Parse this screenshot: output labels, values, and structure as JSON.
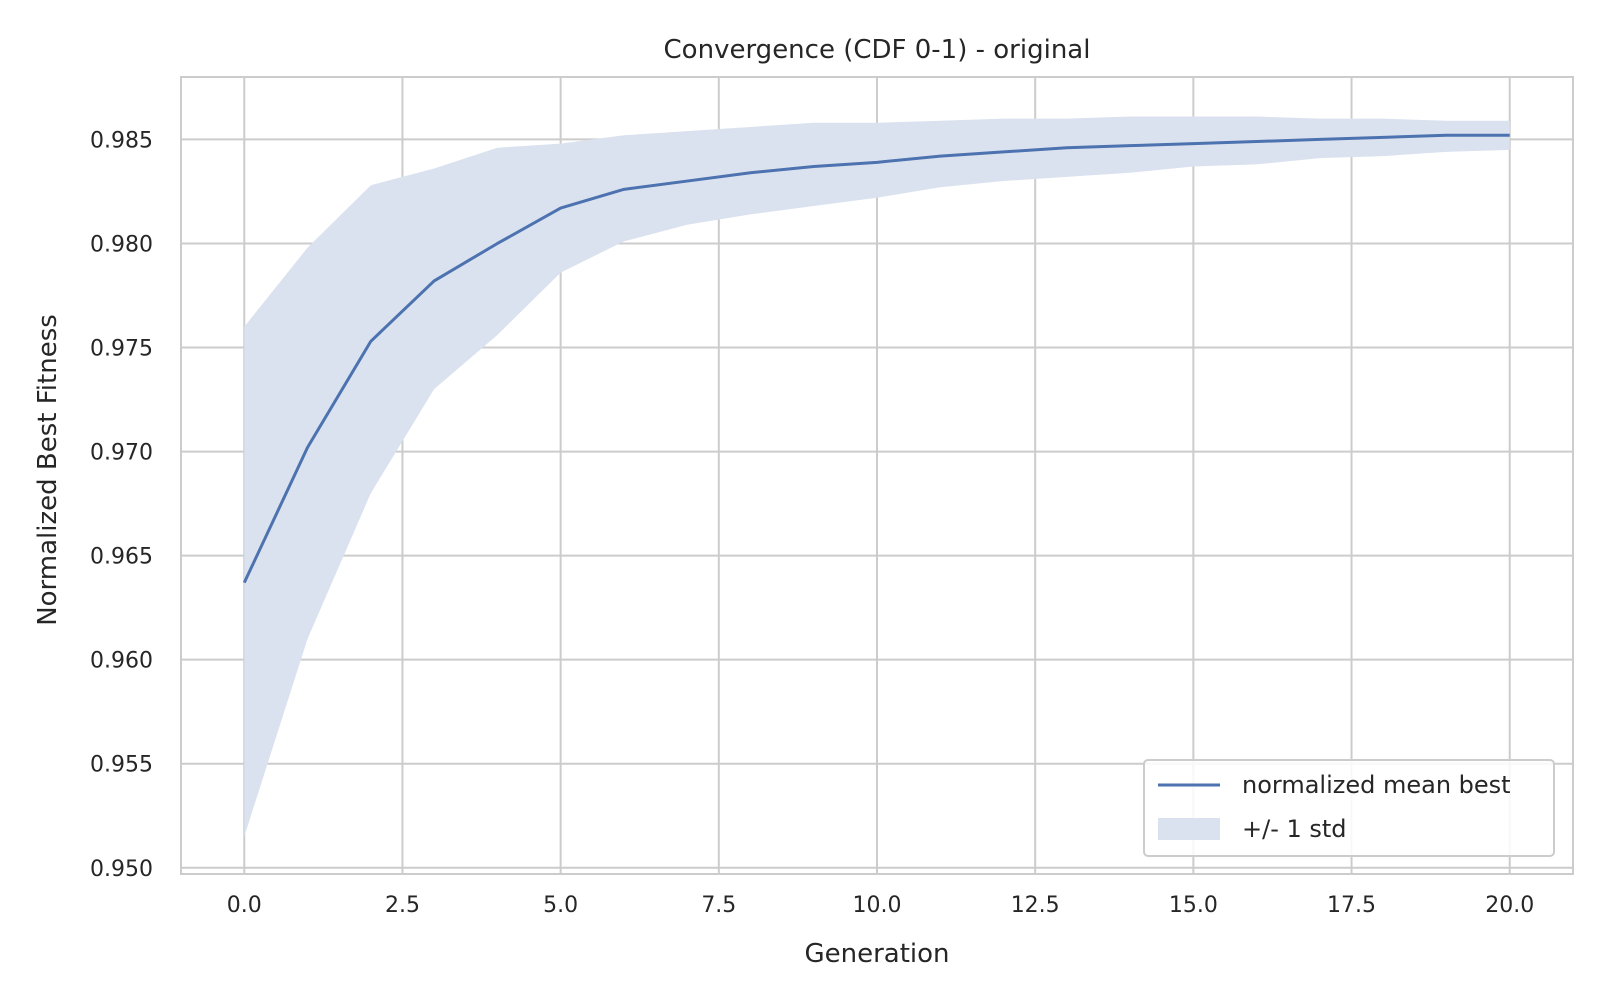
{
  "chart_data": {
    "type": "line",
    "title": "Convergence (CDF 0-1) - original",
    "xlabel": "Generation",
    "ylabel": "Normalized Best Fitness",
    "xlim": [
      -1,
      21
    ],
    "ylim": [
      0.9497,
      0.988
    ],
    "xticks": [
      0,
      2.5,
      5,
      7.5,
      10,
      12.5,
      15,
      17.5,
      20
    ],
    "xtick_labels": [
      "0.0",
      "2.5",
      "5.0",
      "7.5",
      "10.0",
      "12.5",
      "15.0",
      "17.5",
      "20.0"
    ],
    "yticks": [
      0.95,
      0.955,
      0.96,
      0.965,
      0.97,
      0.975,
      0.98,
      0.985
    ],
    "ytick_labels": [
      "0.950",
      "0.955",
      "0.960",
      "0.965",
      "0.970",
      "0.975",
      "0.980",
      "0.985"
    ],
    "grid": true,
    "legend_position": "lower-right",
    "line_color": "#4c72b0",
    "band_color": "#dbe2ef",
    "x": [
      0,
      1,
      2,
      3,
      4,
      5,
      6,
      7,
      8,
      9,
      10,
      11,
      12,
      13,
      14,
      15,
      16,
      17,
      18,
      19,
      20
    ],
    "series": [
      {
        "name": "normalized mean best",
        "values": [
          0.9637,
          0.9702,
          0.9753,
          0.9782,
          0.98,
          0.9817,
          0.9826,
          0.983,
          0.9834,
          0.9837,
          0.9839,
          0.9842,
          0.9844,
          0.9846,
          0.9847,
          0.9848,
          0.9849,
          0.985,
          0.9851,
          0.9852,
          0.9852
        ]
      }
    ],
    "band": {
      "name": "+/- 1 std",
      "upper": [
        0.976,
        0.9798,
        0.9828,
        0.9836,
        0.9846,
        0.9848,
        0.9852,
        0.9854,
        0.9856,
        0.9858,
        0.9858,
        0.9859,
        0.986,
        0.986,
        0.9861,
        0.9861,
        0.9861,
        0.986,
        0.986,
        0.9859,
        0.9859
      ],
      "lower": [
        0.9515,
        0.961,
        0.968,
        0.973,
        0.9756,
        0.9786,
        0.9801,
        0.9809,
        0.9814,
        0.9818,
        0.9822,
        0.9827,
        0.983,
        0.9832,
        0.9834,
        0.9837,
        0.9838,
        0.9841,
        0.9842,
        0.9844,
        0.9845
      ]
    },
    "legend": {
      "line_label": "normalized mean best",
      "band_label": "+/- 1 std"
    }
  }
}
